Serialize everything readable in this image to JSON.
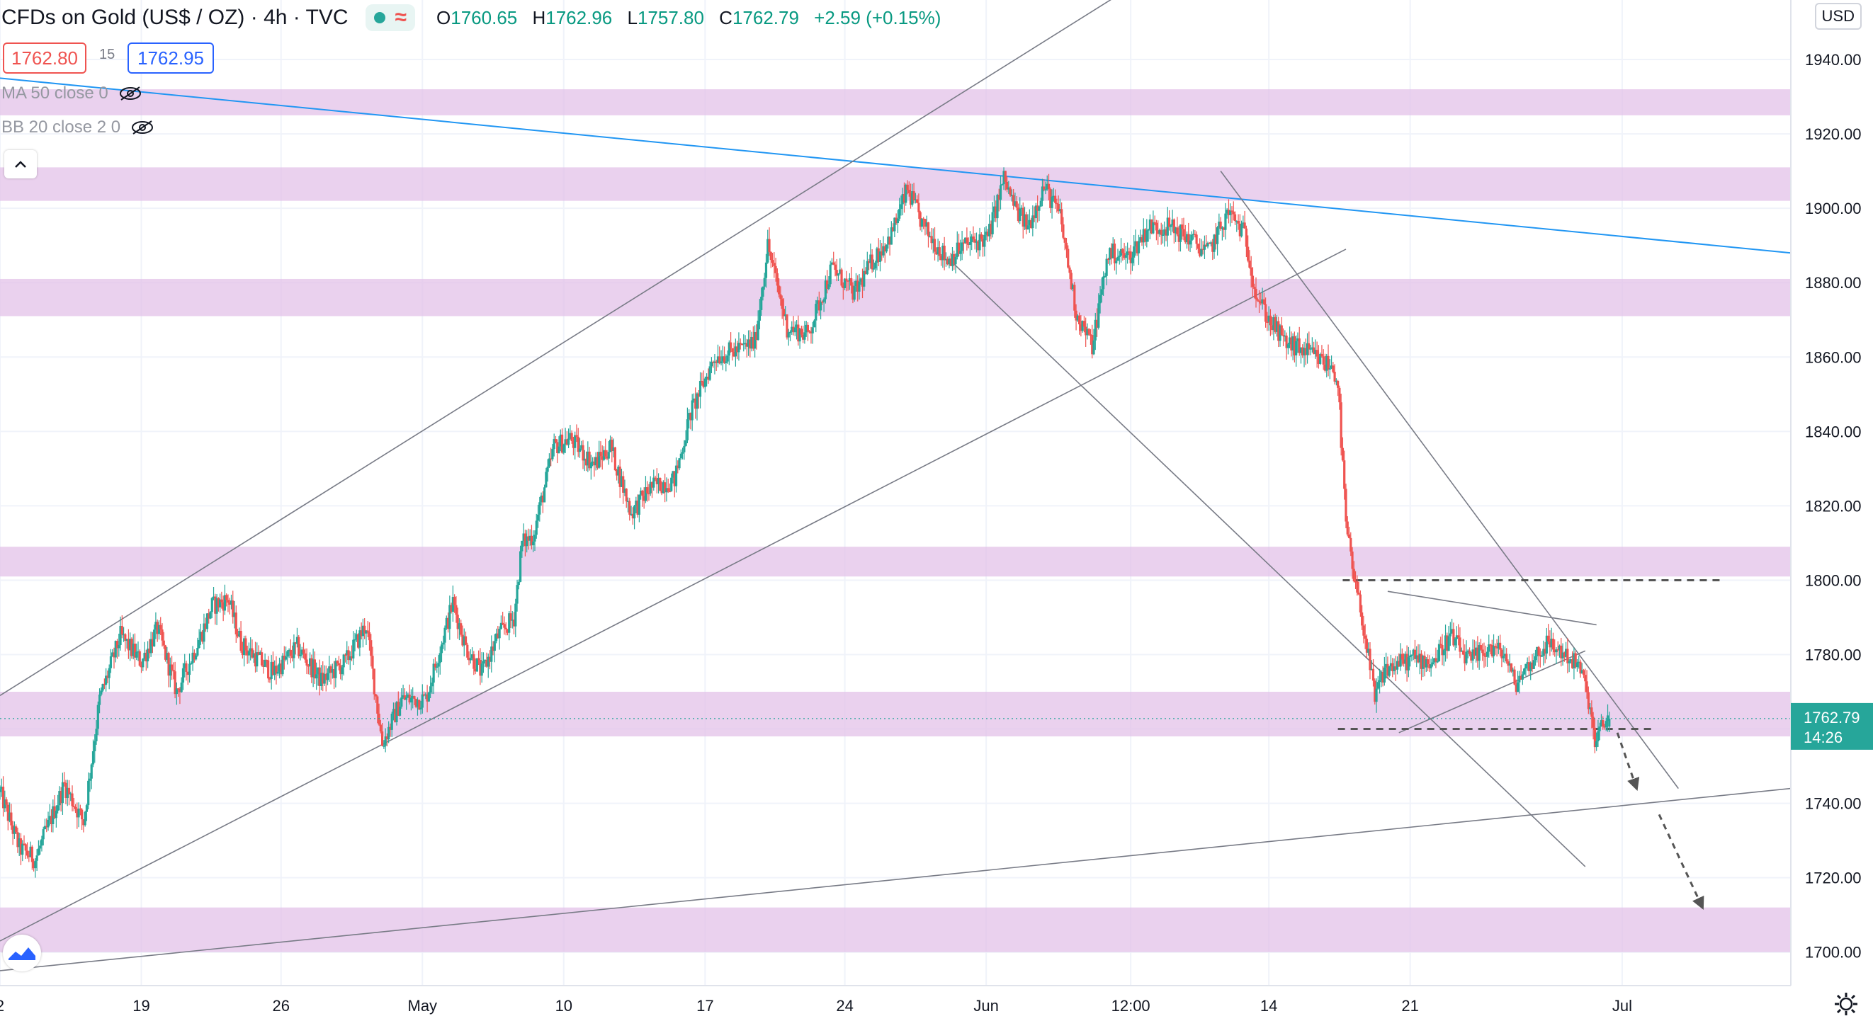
{
  "legend": {
    "title": "CFDs on Gold (US$ / OZ) · 4h · TVC",
    "open_label": "O",
    "open": "1760.65",
    "high_label": "H",
    "high": "1762.96",
    "low_label": "L",
    "low": "1757.80",
    "close_label": "C",
    "close": "1762.79",
    "change": "+2.59 (+0.15%)"
  },
  "trade": {
    "sell": "1762.80",
    "spread": "15",
    "buy": "1762.95"
  },
  "indicators": [
    {
      "label": "MA 50 close 0"
    },
    {
      "label": "BB 20 close 2 0"
    }
  ],
  "currency": "USD",
  "last_price_label": {
    "price": "1762.79",
    "countdown": "14:26"
  },
  "colors": {
    "up": "#26a69a",
    "down": "#ef5350",
    "zone": "#e1bee7",
    "trendline": "#2196f3",
    "price_tag": "#26a69a"
  },
  "icons": [
    "eye-off-icon",
    "chevron-up-icon",
    "tradingview-logo-icon",
    "gear-icon"
  ],
  "chart_data": {
    "type": "candlestick",
    "symbol": "CFDs on Gold (US$ / OZ)",
    "timeframe": "4h",
    "y_axis": {
      "ticks": [
        1700,
        1720,
        1740,
        1760,
        1780,
        1800,
        1820,
        1840,
        1860,
        1880,
        1900,
        1920,
        1940
      ],
      "tick_labels": [
        "1700.00",
        "1720.00",
        "1740.00",
        "1760.00",
        "1780.00",
        "1800.00",
        "1820.00",
        "1840.00",
        "1860.00",
        "1880.00",
        "1900.00",
        "1920.00",
        "1940.00"
      ],
      "ylim": [
        1691,
        1956
      ]
    },
    "x_axis": {
      "tick_labels": [
        "2",
        "19",
        "26",
        "May",
        "10",
        "17",
        "24",
        "Jun",
        "12:00",
        "14",
        "21",
        "Jul"
      ],
      "tick_index": [
        0,
        88,
        175,
        263,
        351,
        439,
        526,
        614,
        704,
        790,
        878,
        1010
      ],
      "xlim": [
        0,
        1115
      ]
    },
    "series": [
      {
        "anchors": [
          [
            0,
            1743
          ],
          [
            12,
            1728
          ],
          [
            22,
            1725
          ],
          [
            40,
            1745
          ],
          [
            52,
            1735
          ],
          [
            62,
            1768
          ],
          [
            75,
            1785
          ],
          [
            88,
            1778
          ],
          [
            98,
            1787
          ],
          [
            110,
            1770
          ],
          [
            125,
            1785
          ],
          [
            132,
            1793
          ],
          [
            142,
            1795
          ],
          [
            150,
            1783
          ],
          [
            170,
            1775
          ],
          [
            185,
            1782
          ],
          [
            200,
            1773
          ],
          [
            215,
            1778
          ],
          [
            228,
            1788
          ],
          [
            238,
            1756
          ],
          [
            250,
            1768
          ],
          [
            265,
            1768
          ],
          [
            282,
            1794
          ],
          [
            290,
            1782
          ],
          [
            300,
            1775
          ],
          [
            310,
            1785
          ],
          [
            320,
            1790
          ],
          [
            325,
            1810
          ],
          [
            332,
            1812
          ],
          [
            345,
            1836
          ],
          [
            355,
            1838
          ],
          [
            370,
            1831
          ],
          [
            380,
            1836
          ],
          [
            393,
            1818
          ],
          [
            405,
            1825
          ],
          [
            420,
            1827
          ],
          [
            430,
            1845
          ],
          [
            445,
            1860
          ],
          [
            460,
            1862
          ],
          [
            470,
            1864
          ],
          [
            478,
            1890
          ],
          [
            490,
            1868
          ],
          [
            503,
            1866
          ],
          [
            518,
            1884
          ],
          [
            532,
            1877
          ],
          [
            542,
            1885
          ],
          [
            555,
            1893
          ],
          [
            565,
            1905
          ],
          [
            575,
            1895
          ],
          [
            590,
            1886
          ],
          [
            600,
            1890
          ],
          [
            615,
            1892
          ],
          [
            625,
            1908
          ],
          [
            632,
            1900
          ],
          [
            640,
            1895
          ],
          [
            650,
            1906
          ],
          [
            660,
            1898
          ],
          [
            670,
            1872
          ],
          [
            680,
            1863
          ],
          [
            690,
            1888
          ],
          [
            703,
            1887
          ],
          [
            715,
            1895
          ],
          [
            728,
            1895
          ],
          [
            740,
            1892
          ],
          [
            752,
            1888
          ],
          [
            765,
            1899
          ],
          [
            775,
            1893
          ],
          [
            782,
            1877
          ],
          [
            790,
            1870
          ],
          [
            800,
            1864
          ],
          [
            815,
            1861
          ],
          [
            830,
            1857
          ],
          [
            833,
            1853
          ],
          [
            838,
            1815
          ],
          [
            843,
            1800
          ],
          [
            848,
            1790
          ],
          [
            856,
            1768
          ],
          [
            862,
            1776
          ],
          [
            880,
            1779
          ],
          [
            892,
            1778
          ],
          [
            903,
            1785
          ],
          [
            915,
            1778
          ],
          [
            927,
            1782
          ],
          [
            937,
            1780
          ],
          [
            943,
            1772
          ],
          [
            953,
            1778
          ],
          [
            963,
            1783
          ],
          [
            975,
            1780
          ],
          [
            984,
            1776
          ],
          [
            989,
            1768
          ],
          [
            993,
            1756
          ],
          [
            999,
            1762
          ],
          [
            1002,
            1763
          ]
        ]
      }
    ],
    "horizontal_zones": [
      [
        1925,
        1932
      ],
      [
        1902,
        1911
      ],
      [
        1871,
        1881
      ],
      [
        1801,
        1809
      ],
      [
        1758,
        1770
      ],
      [
        1700,
        1712
      ]
    ],
    "annotations": [
      "support/resistance zones",
      "ascending channel",
      "descending channel",
      "dashed levels at 1800 and 1760",
      "projected move arrows"
    ]
  }
}
